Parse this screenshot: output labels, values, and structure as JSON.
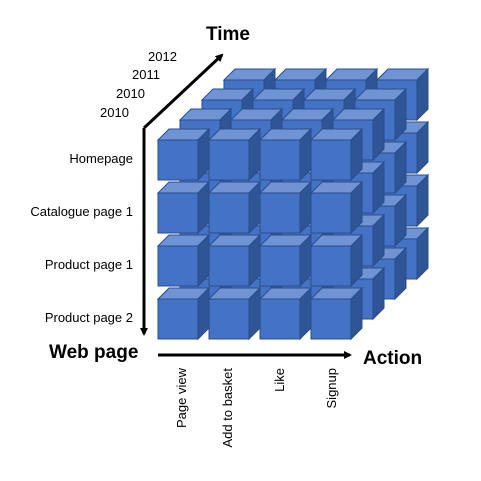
{
  "axes": {
    "time_title": "Time",
    "webpage_title": "Web page",
    "action_title": "Action"
  },
  "years": [
    "2010",
    "2010",
    "2011",
    "2012"
  ],
  "web_pages": [
    "Homepage",
    "Catalogue page 1",
    "Product  page 1",
    "Product  page 2"
  ],
  "actions": [
    "Page view",
    "Add to basket",
    "Like",
    "Signup"
  ],
  "colors": {
    "cube_front": "#4472c4",
    "cube_top": "#6f93d3",
    "cube_side": "#2f5597",
    "cube_edge": "#2a4d8c",
    "arrow": "#000000"
  }
}
